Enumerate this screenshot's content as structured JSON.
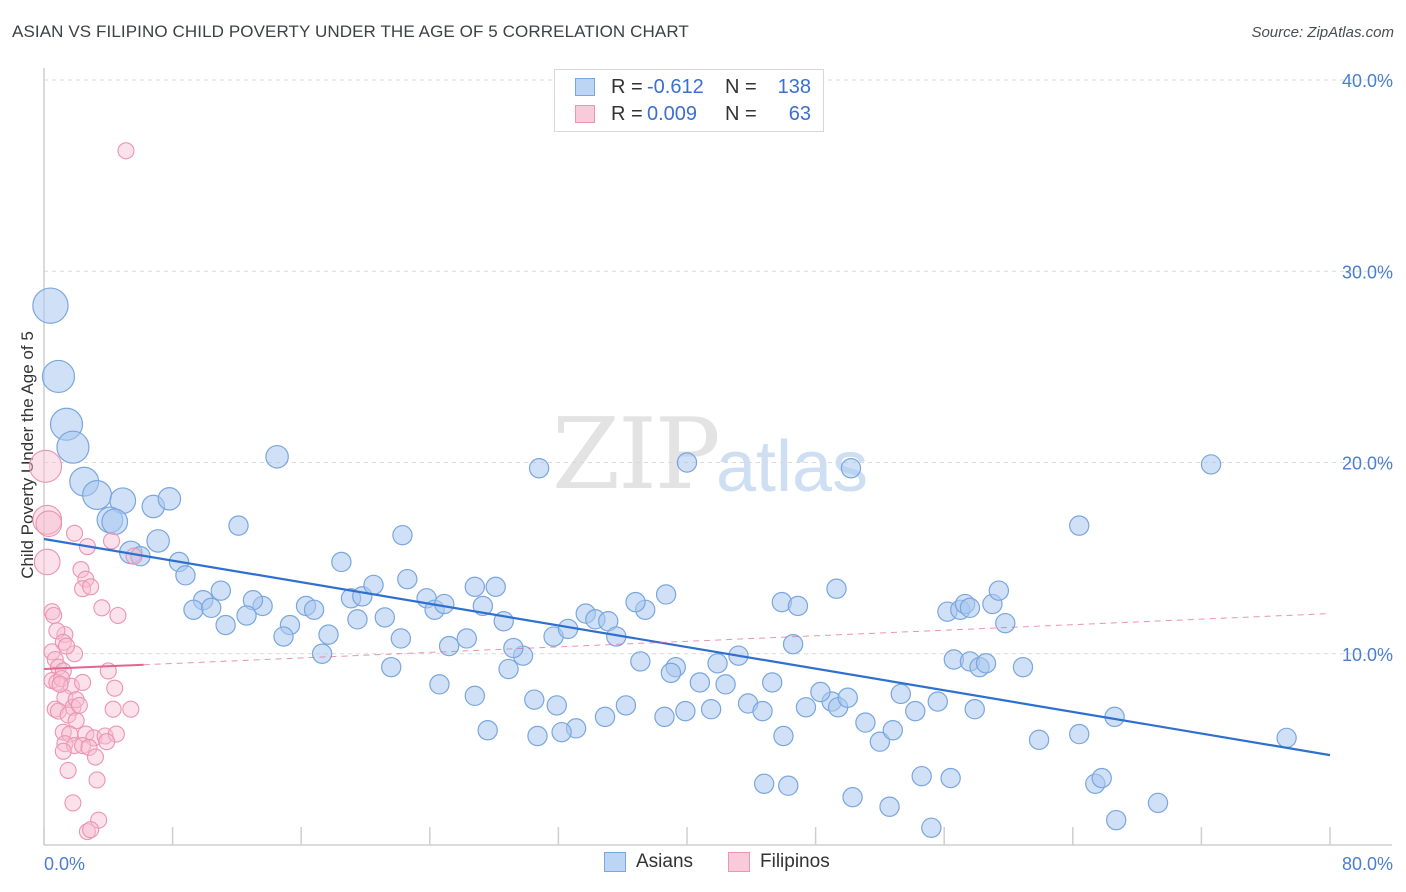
{
  "header": {
    "title": "ASIAN VS FILIPINO CHILD POVERTY UNDER THE AGE OF 5 CORRELATION CHART",
    "source": "Source: ZipAtlas.com"
  },
  "watermark": {
    "zip": "ZIP",
    "atlas": "atlas"
  },
  "legend": {
    "asians": {
      "r_label": "R =",
      "r_value": "-0.612",
      "n_label": "N =",
      "n_value": "138"
    },
    "filipinos": {
      "r_label": "R =",
      "r_value": "0.009",
      "n_label": "N =",
      "n_value": "63"
    }
  },
  "bottom_legend": {
    "asians": "Asians",
    "filipinos": "Filipinos"
  },
  "colors": {
    "asian_fill": "#a9c8f0",
    "asian_stroke": "#7aa6de",
    "asian_line": "#2f6fd0",
    "filipino_fill": "#f6bdd0",
    "filipino_stroke": "#ec94b2",
    "filipino_line": "#e0668f",
    "tick_label": "#4a7fd0",
    "grid": "#d9d9d9"
  },
  "chart_data": {
    "type": "scatter",
    "title": "ASIAN VS FILIPINO CHILD POVERTY UNDER THE AGE OF 5 CORRELATION CHART",
    "xlabel": "",
    "ylabel": "Child Poverty Under the Age of 5",
    "xlim": [
      0,
      80
    ],
    "ylim": [
      0,
      40
    ],
    "x_tick_labels": {
      "min": "0.0%",
      "max": "80.0%"
    },
    "y_ticks": [
      10,
      20,
      30,
      40
    ],
    "y_tick_labels": [
      "10.0%",
      "20.0%",
      "30.0%",
      "40.0%"
    ],
    "grid": true,
    "series": [
      {
        "name": "Asians",
        "r": -0.612,
        "n": 138,
        "trend": {
          "x": [
            0,
            80
          ],
          "y": [
            16.0,
            4.7
          ]
        },
        "points": [
          [
            0.4,
            28.2,
            2.2
          ],
          [
            0.9,
            24.5,
            2.0
          ],
          [
            1.4,
            22.0,
            2.0
          ],
          [
            1.8,
            20.8,
            2.0
          ],
          [
            2.5,
            19.0,
            1.8
          ],
          [
            3.3,
            18.3,
            1.8
          ],
          [
            4.9,
            18.0,
            1.6
          ],
          [
            4.1,
            17.0,
            1.6
          ],
          [
            4.4,
            16.9,
            1.6
          ],
          [
            6.8,
            17.7,
            1.4
          ],
          [
            7.8,
            18.1,
            1.4
          ],
          [
            14.5,
            20.3,
            1.4
          ],
          [
            12.1,
            16.7,
            1.2
          ],
          [
            22.3,
            16.2,
            1.2
          ],
          [
            5.4,
            15.3,
            1.4
          ],
          [
            6.0,
            15.1,
            1.2
          ],
          [
            7.1,
            15.9,
            1.4
          ],
          [
            8.4,
            14.8,
            1.2
          ],
          [
            18.5,
            14.8,
            1.2
          ],
          [
            8.8,
            14.1,
            1.2
          ],
          [
            11.0,
            13.3,
            1.2
          ],
          [
            9.9,
            12.8,
            1.2
          ],
          [
            9.3,
            12.3,
            1.2
          ],
          [
            10.4,
            12.4,
            1.2
          ],
          [
            13.6,
            12.5,
            1.2
          ],
          [
            13.0,
            12.8,
            1.2
          ],
          [
            15.3,
            11.5,
            1.2
          ],
          [
            11.3,
            11.5,
            1.2
          ],
          [
            12.6,
            12.0,
            1.2
          ],
          [
            14.9,
            10.9,
            1.2
          ],
          [
            16.3,
            12.5,
            1.2
          ],
          [
            16.8,
            12.3,
            1.2
          ],
          [
            17.7,
            11.0,
            1.2
          ],
          [
            19.5,
            11.8,
            1.2
          ],
          [
            19.1,
            12.9,
            1.2
          ],
          [
            19.8,
            13.0,
            1.2
          ],
          [
            20.5,
            13.6,
            1.2
          ],
          [
            21.2,
            11.9,
            1.2
          ],
          [
            22.6,
            13.9,
            1.2
          ],
          [
            22.2,
            10.8,
            1.2
          ],
          [
            21.6,
            9.3,
            1.2
          ],
          [
            17.3,
            10.0,
            1.2
          ],
          [
            23.8,
            12.9,
            1.2
          ],
          [
            24.3,
            12.3,
            1.2
          ],
          [
            24.9,
            12.6,
            1.2
          ],
          [
            25.2,
            10.4,
            1.2
          ],
          [
            26.8,
            13.5,
            1.2
          ],
          [
            27.3,
            12.5,
            1.2
          ],
          [
            28.1,
            13.5,
            1.2
          ],
          [
            28.6,
            11.7,
            1.2
          ],
          [
            26.3,
            10.8,
            1.2
          ],
          [
            24.6,
            8.4,
            1.2
          ],
          [
            26.8,
            7.8,
            1.2
          ],
          [
            28.9,
            9.2,
            1.2
          ],
          [
            29.8,
            9.9,
            1.2
          ],
          [
            27.6,
            6.0,
            1.2
          ],
          [
            29.2,
            10.3,
            1.2
          ],
          [
            30.5,
            7.6,
            1.2
          ],
          [
            30.7,
            5.7,
            1.2
          ],
          [
            31.7,
            10.9,
            1.2
          ],
          [
            31.9,
            7.3,
            1.2
          ],
          [
            32.6,
            11.3,
            1.2
          ],
          [
            33.1,
            6.1,
            1.2
          ],
          [
            33.7,
            12.1,
            1.2
          ],
          [
            34.3,
            11.8,
            1.2
          ],
          [
            35.1,
            11.7,
            1.2
          ],
          [
            35.6,
            10.9,
            1.2
          ],
          [
            34.9,
            6.7,
            1.2
          ],
          [
            32.2,
            5.9,
            1.2
          ],
          [
            36.2,
            7.3,
            1.2
          ],
          [
            37.1,
            9.6,
            1.2
          ],
          [
            38.6,
            6.7,
            1.2
          ],
          [
            39.3,
            9.3,
            1.2
          ],
          [
            39.9,
            7.0,
            1.2
          ],
          [
            40.8,
            8.5,
            1.2
          ],
          [
            41.5,
            7.1,
            1.2
          ],
          [
            41.9,
            9.5,
            1.2
          ],
          [
            42.4,
            8.4,
            1.2
          ],
          [
            43.8,
            7.4,
            1.2
          ],
          [
            43.2,
            9.9,
            1.2
          ],
          [
            44.7,
            7.0,
            1.2
          ],
          [
            45.3,
            8.5,
            1.2
          ],
          [
            46.0,
            5.7,
            1.2
          ],
          [
            45.9,
            12.7,
            1.2
          ],
          [
            46.6,
            10.5,
            1.2
          ],
          [
            49.0,
            7.5,
            1.2
          ],
          [
            48.3,
            8.0,
            1.2
          ],
          [
            49.4,
            7.2,
            1.2
          ],
          [
            50.0,
            7.7,
            1.2
          ],
          [
            51.1,
            6.4,
            1.2
          ],
          [
            52.0,
            5.4,
            1.2
          ],
          [
            52.8,
            6.0,
            1.2
          ],
          [
            53.3,
            7.9,
            1.2
          ],
          [
            54.2,
            7.0,
            1.2
          ],
          [
            54.6,
            3.6,
            1.2
          ],
          [
            55.6,
            7.5,
            1.2
          ],
          [
            56.2,
            12.2,
            1.2
          ],
          [
            57.0,
            12.3,
            1.2
          ],
          [
            57.3,
            12.6,
            1.2
          ],
          [
            57.6,
            12.4,
            1.2
          ],
          [
            59.0,
            12.6,
            1.2
          ],
          [
            59.4,
            13.3,
            1.2
          ],
          [
            59.8,
            11.6,
            1.2
          ],
          [
            60.9,
            9.3,
            1.2
          ],
          [
            56.6,
            9.7,
            1.2
          ],
          [
            57.6,
            9.6,
            1.2
          ],
          [
            58.2,
            9.3,
            1.2
          ],
          [
            58.6,
            9.5,
            1.2
          ],
          [
            57.9,
            7.1,
            1.2
          ],
          [
            61.9,
            5.5,
            1.2
          ],
          [
            64.4,
            5.8,
            1.2
          ],
          [
            66.6,
            6.7,
            1.2
          ],
          [
            65.4,
            3.2,
            1.2
          ],
          [
            65.8,
            3.5,
            1.2
          ],
          [
            66.7,
            1.3,
            1.2
          ],
          [
            69.3,
            2.2,
            1.2
          ],
          [
            77.3,
            5.6,
            1.2
          ],
          [
            72.6,
            19.9,
            1.2
          ],
          [
            64.4,
            16.7,
            1.2
          ],
          [
            40.0,
            20.0,
            1.2
          ],
          [
            30.8,
            19.7,
            1.2
          ],
          [
            50.2,
            19.7,
            1.2
          ],
          [
            49.3,
            13.4,
            1.2
          ],
          [
            37.4,
            12.3,
            1.2
          ],
          [
            38.7,
            13.1,
            1.2
          ],
          [
            44.8,
            3.2,
            1.2
          ],
          [
            46.3,
            3.1,
            1.2
          ],
          [
            50.3,
            2.5,
            1.2
          ],
          [
            52.6,
            2.0,
            1.2
          ],
          [
            55.2,
            0.9,
            1.2
          ],
          [
            56.4,
            3.5,
            1.2
          ],
          [
            47.4,
            7.2,
            1.2
          ],
          [
            46.9,
            12.5,
            1.2
          ],
          [
            39.0,
            9.0,
            1.2
          ],
          [
            36.8,
            12.7,
            1.2
          ]
        ]
      },
      {
        "name": "Filipinos",
        "r": 0.009,
        "n": 63,
        "trend": {
          "x": [
            0,
            80
          ],
          "y": [
            9.2,
            12.1
          ]
        },
        "trend_solid_until_x": 6.2,
        "points": [
          [
            0.1,
            19.8,
            2.0
          ],
          [
            0.2,
            17.0,
            1.8
          ],
          [
            0.3,
            16.8,
            1.6
          ],
          [
            0.2,
            14.8,
            1.6
          ],
          [
            5.1,
            36.3,
            1.0
          ],
          [
            1.9,
            16.3,
            1.0
          ],
          [
            2.7,
            15.6,
            1.0
          ],
          [
            5.6,
            15.1,
            1.0
          ],
          [
            4.2,
            15.9,
            1.0
          ],
          [
            2.3,
            14.4,
            1.0
          ],
          [
            2.6,
            13.9,
            1.0
          ],
          [
            2.4,
            13.4,
            1.0
          ],
          [
            2.9,
            13.5,
            1.0
          ],
          [
            0.5,
            12.2,
            1.0
          ],
          [
            1.3,
            11.0,
            1.0
          ],
          [
            0.8,
            11.2,
            1.0
          ],
          [
            1.2,
            10.6,
            1.0
          ],
          [
            3.6,
            12.4,
            1.0
          ],
          [
            4.6,
            12.0,
            1.0
          ],
          [
            0.5,
            10.1,
            1.0
          ],
          [
            0.7,
            9.7,
            1.0
          ],
          [
            1.9,
            10.0,
            1.0
          ],
          [
            0.9,
            9.3,
            1.0
          ],
          [
            1.2,
            9.1,
            1.0
          ],
          [
            0.5,
            8.6,
            1.0
          ],
          [
            0.8,
            8.5,
            1.0
          ],
          [
            1.1,
            8.7,
            1.0
          ],
          [
            1.7,
            8.3,
            1.0
          ],
          [
            2.4,
            8.5,
            1.0
          ],
          [
            4.4,
            8.2,
            1.0
          ],
          [
            4.0,
            9.1,
            1.0
          ],
          [
            1.3,
            7.7,
            1.0
          ],
          [
            1.8,
            7.2,
            1.0
          ],
          [
            2.0,
            7.6,
            1.0
          ],
          [
            0.7,
            7.1,
            1.0
          ],
          [
            0.9,
            7.0,
            1.0
          ],
          [
            1.5,
            6.8,
            1.0
          ],
          [
            2.0,
            6.5,
            1.0
          ],
          [
            4.3,
            7.1,
            1.0
          ],
          [
            5.4,
            7.1,
            1.0
          ],
          [
            1.2,
            5.9,
            1.0
          ],
          [
            1.6,
            5.8,
            1.0
          ],
          [
            2.6,
            5.8,
            1.0
          ],
          [
            3.1,
            5.6,
            1.0
          ],
          [
            3.8,
            5.7,
            1.0
          ],
          [
            4.5,
            5.8,
            1.0
          ],
          [
            1.3,
            5.3,
            1.0
          ],
          [
            1.9,
            5.2,
            1.0
          ],
          [
            2.4,
            5.2,
            1.0
          ],
          [
            2.8,
            5.1,
            1.0
          ],
          [
            1.2,
            4.9,
            1.0
          ],
          [
            3.2,
            4.6,
            1.0
          ],
          [
            1.5,
            3.9,
            1.0
          ],
          [
            3.3,
            3.4,
            1.0
          ],
          [
            1.8,
            2.2,
            1.0
          ],
          [
            3.4,
            1.3,
            1.0
          ],
          [
            2.7,
            0.7,
            1.0
          ],
          [
            2.9,
            0.8,
            1.0
          ],
          [
            1.0,
            8.4,
            1.0
          ],
          [
            3.9,
            5.4,
            1.0
          ],
          [
            0.6,
            12.0,
            1.0
          ],
          [
            1.4,
            10.4,
            1.0
          ],
          [
            2.2,
            7.3,
            1.0
          ]
        ]
      }
    ]
  }
}
